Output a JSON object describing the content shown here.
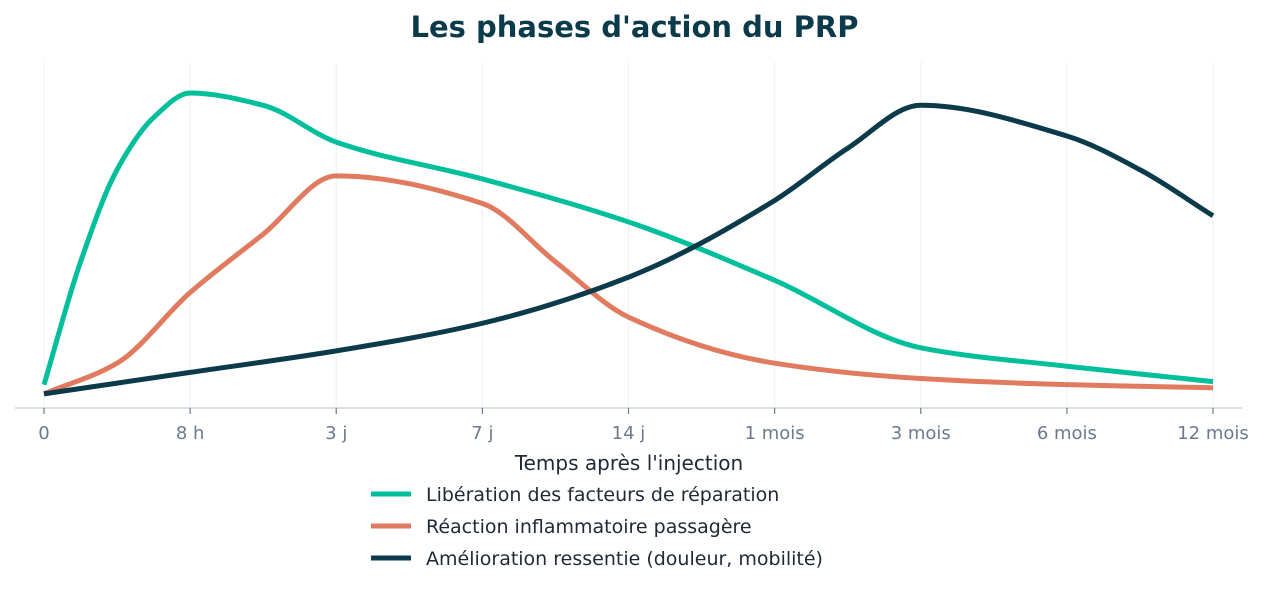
{
  "chart_data": {
    "type": "line",
    "title": "Les phases d'action du PRP",
    "xlabel": "Temps après l'injection",
    "ylabel": "",
    "categories": [
      "0",
      "8 h",
      "3 j",
      "7 j",
      "14 j",
      "1 mois",
      "3 mois",
      "6 mois",
      "12 mois"
    ],
    "ylim": [
      0,
      100
    ],
    "grid": "vertical",
    "legend_position": "bottom",
    "series": [
      {
        "name": "Libération des facteurs de réparation",
        "color": "#00bf9a",
        "points": [
          [
            0,
            5
          ],
          [
            0.25,
            45
          ],
          [
            0.5,
            75
          ],
          [
            0.75,
            92
          ],
          [
            1,
            100
          ],
          [
            1.5,
            96
          ],
          [
            2,
            84
          ],
          [
            3,
            72
          ],
          [
            4,
            58
          ],
          [
            5,
            39
          ],
          [
            6,
            17
          ],
          [
            7,
            11
          ],
          [
            8,
            6
          ]
        ]
      },
      {
        "name": "Réaction inflammatoire passagère",
        "color": "#e07b5f",
        "points": [
          [
            0,
            2
          ],
          [
            0.5,
            12
          ],
          [
            1,
            35
          ],
          [
            1.5,
            54
          ],
          [
            2,
            73
          ],
          [
            3,
            64
          ],
          [
            3.5,
            45
          ],
          [
            4,
            27
          ],
          [
            5,
            12
          ],
          [
            6,
            7
          ],
          [
            7,
            5
          ],
          [
            8,
            4
          ]
        ]
      },
      {
        "name": "Amélioration ressentie (douleur, mobilité)",
        "color": "#0b3a4a",
        "points": [
          [
            0,
            2
          ],
          [
            1,
            9
          ],
          [
            2,
            16
          ],
          [
            3,
            25
          ],
          [
            4,
            40
          ],
          [
            5,
            65
          ],
          [
            5.5,
            82
          ],
          [
            6,
            96
          ],
          [
            7,
            86
          ],
          [
            7.5,
            75
          ],
          [
            8,
            60
          ]
        ]
      }
    ]
  }
}
